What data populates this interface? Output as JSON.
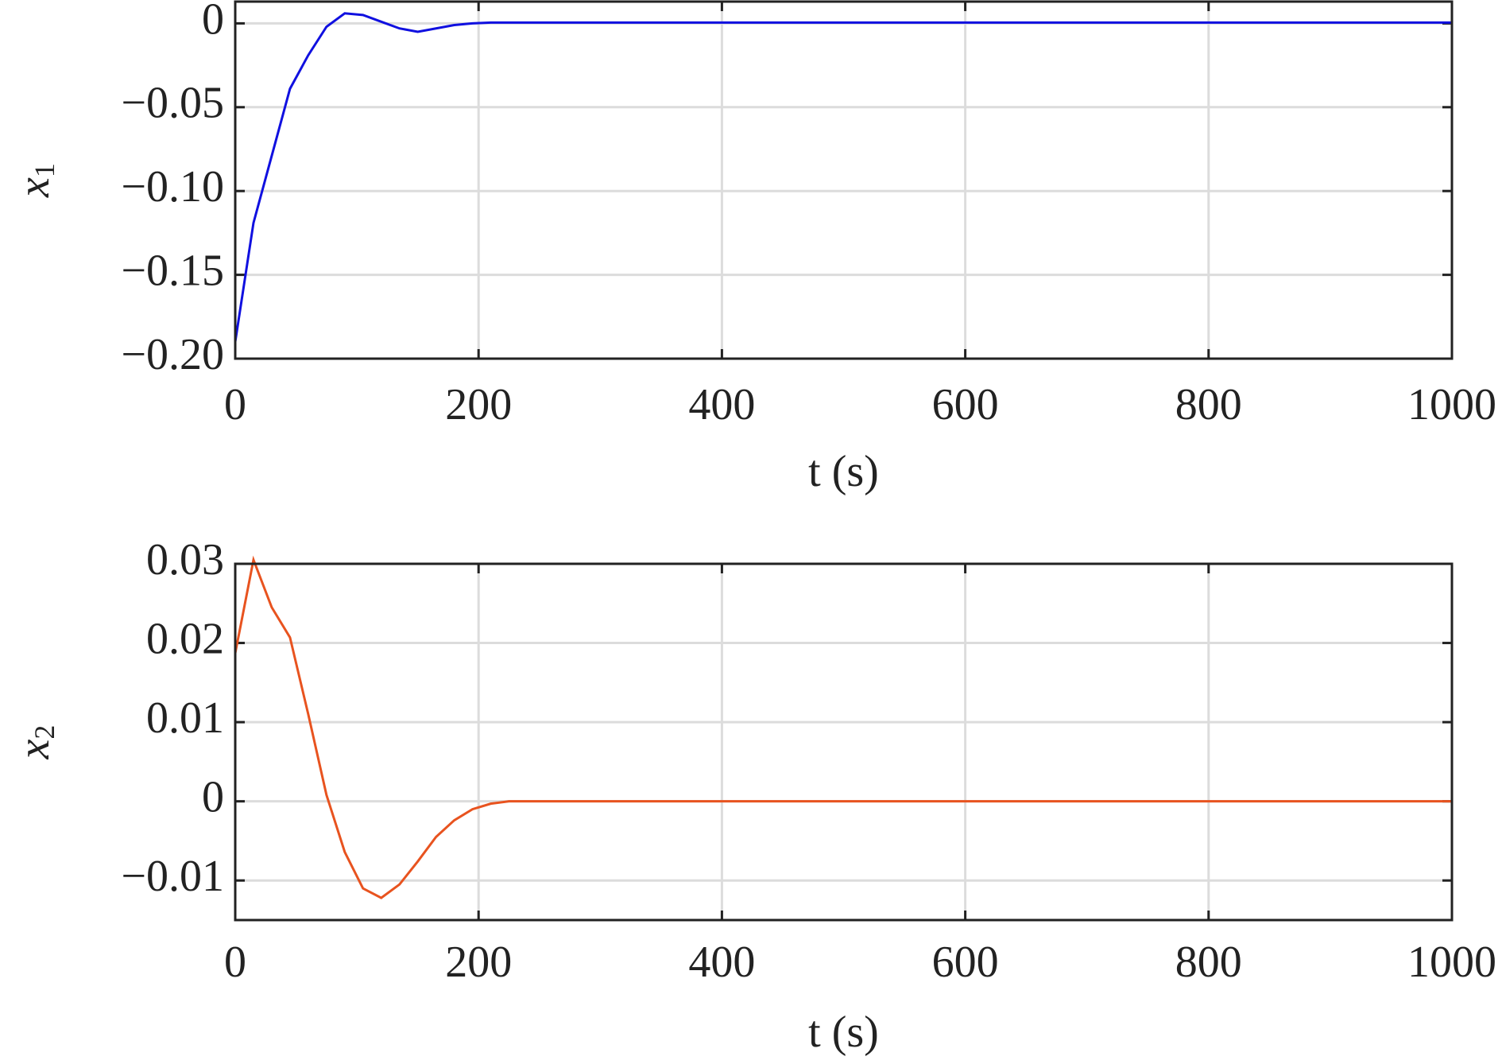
{
  "chart_data": [
    {
      "type": "line",
      "xlabel": "t (s)",
      "ylabel": "x",
      "ylabel_sub": "1",
      "x": [
        0,
        15,
        30,
        45,
        60,
        75,
        90,
        105,
        120,
        135,
        150,
        165,
        180,
        195,
        210,
        1000
      ],
      "series": [
        {
          "name": "x1",
          "color": "#1010e0",
          "values": [
            -0.19,
            -0.119,
            -0.079,
            -0.039,
            -0.019,
            -0.002,
            0.006,
            0.005,
            0.001,
            -0.003,
            -0.005,
            -0.003,
            -0.001,
            0,
            0.0005,
            0.0005
          ]
        }
      ],
      "xlim": [
        0,
        1000
      ],
      "xticks": [
        0,
        200,
        400,
        600,
        800,
        1000
      ],
      "ylim": [
        -0.2,
        0.013
      ],
      "yticks": [
        {
          "value": -0.2,
          "label": "−0.20"
        },
        {
          "value": -0.15,
          "label": "−0.15"
        },
        {
          "value": -0.1,
          "label": "−0.10"
        },
        {
          "value": -0.05,
          "label": "−0.05"
        },
        0
      ],
      "grid": true
    },
    {
      "type": "line",
      "xlabel": "t (s)",
      "ylabel": "x",
      "ylabel_sub": "2",
      "x": [
        0,
        15,
        30,
        45,
        60,
        75,
        90,
        105,
        120,
        135,
        150,
        165,
        180,
        195,
        210,
        225,
        1000
      ],
      "series": [
        {
          "name": "x2",
          "color": "#e8531f",
          "values": [
            0.0187,
            0.0305,
            0.0245,
            0.0207,
            0.011,
            0.0008,
            -0.0064,
            -0.011,
            -0.0122,
            -0.0105,
            -0.0076,
            -0.0045,
            -0.0024,
            -0.001,
            -0.0003,
            0,
            0
          ]
        }
      ],
      "xlim": [
        0,
        1000
      ],
      "xticks": [
        0,
        200,
        400,
        600,
        800,
        1000
      ],
      "ylim": [
        -0.015,
        0.03
      ],
      "yticks": [
        {
          "value": -0.01,
          "label": "−0.01"
        },
        0,
        0.01,
        0.02,
        0.03
      ],
      "grid": true
    }
  ]
}
